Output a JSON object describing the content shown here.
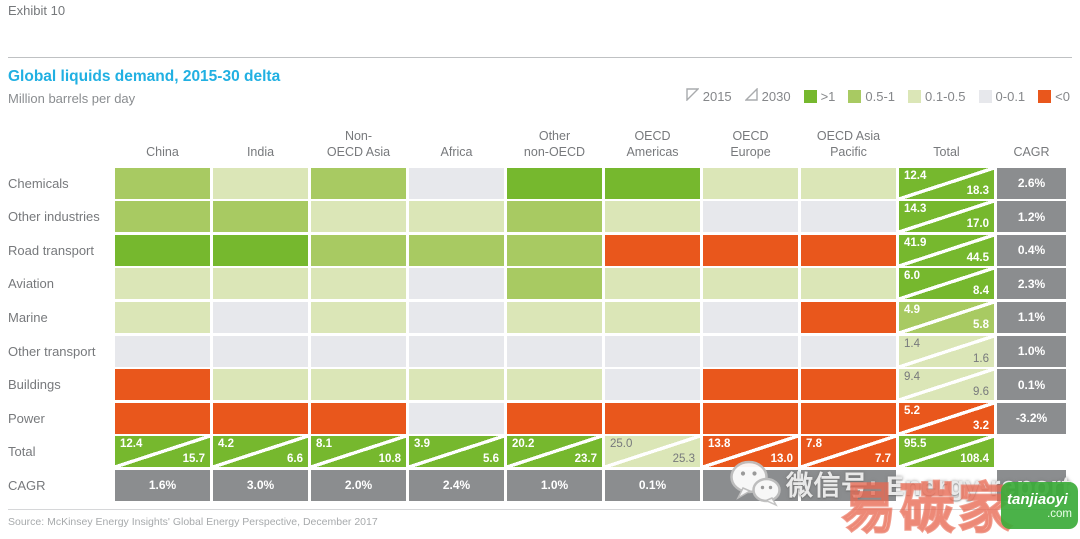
{
  "exhibit": "Exhibit 10",
  "title": "Global liquids demand, 2015-30 delta",
  "subtitle": "Million barrels per day",
  "source": "Source: McKinsey Energy Insights' Global Energy Perspective, December 2017",
  "colors": {
    "g3": "#76b82e",
    "g2": "#a8ca62",
    "g1": "#dbe6b7",
    "g0": "#e7e8ec",
    "neg": "#e9571c",
    "cagr_bg": "#8b8d8f",
    "title": "#21b0e2",
    "label": "#77797c"
  },
  "legend": {
    "years": [
      {
        "label": "2015",
        "icon": "triangle-upper-left-icon"
      },
      {
        "label": "2030",
        "icon": "triangle-lower-right-icon"
      }
    ],
    "buckets": [
      {
        "label": ">1",
        "bucket": "g3"
      },
      {
        "label": "0.5-1",
        "bucket": "g2"
      },
      {
        "label": "0.1-0.5",
        "bucket": "g1"
      },
      {
        "label": "0-0.1",
        "bucket": "g0"
      },
      {
        "label": "<0",
        "bucket": "neg"
      }
    ]
  },
  "chart_data": {
    "type": "heatmap",
    "title": "Global liquids demand, 2015-30 delta",
    "unit": "Million barrels per day",
    "bucket_scale_mbd": {
      "g3": ">1",
      "g2": "0.5-1",
      "g1": "0.1-0.5",
      "g0": "0-0.1",
      "neg": "<0"
    },
    "columns": [
      "China",
      "India",
      "Non-\nOECD Asia",
      "Africa",
      "Other\nnon-OECD",
      "OECD\nAmericas",
      "OECD\nEurope",
      "OECD Asia\nPacific",
      "Total",
      "CAGR"
    ],
    "rows": [
      {
        "label": "Chemicals",
        "cells": [
          "g2",
          "g1",
          "g2",
          "g0",
          "g3",
          "g3",
          "g1",
          "g1"
        ],
        "total": {
          "y2015": "12.4",
          "y2030": "18.3",
          "bucket": "g3"
        },
        "cagr": "2.6%"
      },
      {
        "label": "Other industries",
        "cells": [
          "g2",
          "g2",
          "g1",
          "g1",
          "g2",
          "g1",
          "g0",
          "g0"
        ],
        "total": {
          "y2015": "14.3",
          "y2030": "17.0",
          "bucket": "g3"
        },
        "cagr": "1.2%"
      },
      {
        "label": "Road transport",
        "cells": [
          "g3",
          "g3",
          "g2",
          "g2",
          "g2",
          "neg",
          "neg",
          "neg"
        ],
        "total": {
          "y2015": "41.9",
          "y2030": "44.5",
          "bucket": "g3"
        },
        "cagr": "0.4%"
      },
      {
        "label": "Aviation",
        "cells": [
          "g1",
          "g1",
          "g1",
          "g0",
          "g2",
          "g1",
          "g1",
          "g1"
        ],
        "total": {
          "y2015": "6.0",
          "y2030": "8.4",
          "bucket": "g3"
        },
        "cagr": "2.3%"
      },
      {
        "label": "Marine",
        "cells": [
          "g1",
          "g0",
          "g1",
          "g0",
          "g1",
          "g1",
          "g0",
          "neg"
        ],
        "total": {
          "y2015": "4.9",
          "y2030": "5.8",
          "bucket": "g2"
        },
        "cagr": "1.1%"
      },
      {
        "label": "Other transport",
        "cells": [
          "g0",
          "g0",
          "g0",
          "g0",
          "g0",
          "g0",
          "g0",
          "g0"
        ],
        "total": {
          "y2015": "1.4",
          "y2030": "1.6",
          "bucket": "g1"
        },
        "cagr": "1.0%"
      },
      {
        "label": "Buildings",
        "cells": [
          "neg",
          "g1",
          "g1",
          "g1",
          "g1",
          "g0",
          "neg",
          "neg"
        ],
        "total": {
          "y2015": "9.4",
          "y2030": "9.6",
          "bucket": "g1"
        },
        "cagr": "0.1%"
      },
      {
        "label": "Power",
        "cells": [
          "neg",
          "neg",
          "neg",
          "g0",
          "neg",
          "neg",
          "neg",
          "neg"
        ],
        "total": {
          "y2015": "5.2",
          "y2030": "3.2",
          "bucket": "neg"
        },
        "cagr": "-3.2%"
      }
    ],
    "total_row": {
      "label": "Total",
      "cells": [
        {
          "y2015": "12.4",
          "y2030": "15.7",
          "bucket": "g3"
        },
        {
          "y2015": "4.2",
          "y2030": "6.6",
          "bucket": "g3"
        },
        {
          "y2015": "8.1",
          "y2030": "10.8",
          "bucket": "g3"
        },
        {
          "y2015": "3.9",
          "y2030": "5.6",
          "bucket": "g3"
        },
        {
          "y2015": "20.2",
          "y2030": "23.7",
          "bucket": "g3"
        },
        {
          "y2015": "25.0",
          "y2030": "25.3",
          "bucket": "g1"
        },
        {
          "y2015": "13.8",
          "y2030": "13.0",
          "bucket": "neg"
        },
        {
          "y2015": "7.8",
          "y2030": "7.7",
          "bucket": "neg"
        },
        {
          "y2015": "95.5",
          "y2030": "108.4",
          "bucket": "g3"
        }
      ]
    },
    "cagr_row": {
      "label": "CAGR",
      "values": [
        "1.6%",
        "3.0%",
        "2.0%",
        "2.4%",
        "1.0%",
        "0.1%",
        "",
        ""
      ],
      "corner": ""
    }
  },
  "watermark": {
    "wechat_label": "微信号: Energy-report",
    "stamp": "易碳家",
    "badge_title": "tanjiaoyi",
    "badge_domain": ".com"
  }
}
